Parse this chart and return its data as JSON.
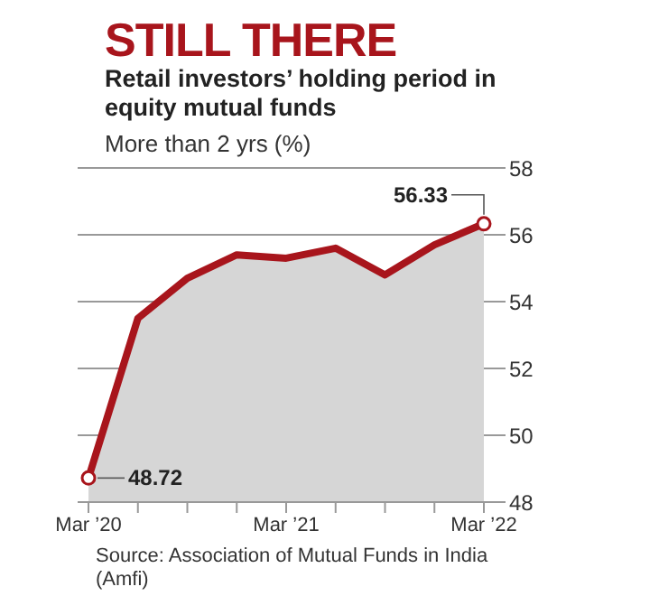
{
  "chart_data": {
    "type": "area",
    "title": "STILL THERE",
    "subtitle": "Retail investors’ holding period in equity mutual funds",
    "ylabel": "More than 2 yrs (%)",
    "categories": [
      "Mar ’20",
      null,
      null,
      null,
      "Mar ’21",
      null,
      null,
      null,
      "Mar ’22"
    ],
    "series": [
      {
        "color": "#a8151c",
        "values": [
          48.72,
          53.5,
          54.7,
          55.4,
          55.3,
          55.6,
          54.8,
          55.7,
          56.33
        ],
        "value_labels": [
          "48.72",
          null,
          null,
          null,
          null,
          null,
          null,
          null,
          "56.33"
        ]
      }
    ],
    "ylim": [
      48,
      58
    ],
    "yticks": [
      48,
      50,
      52,
      54,
      56,
      58
    ],
    "grid": "y",
    "legend": false,
    "annotations": [
      "Source: Association of Mutual Funds in India (Amfi)"
    ]
  }
}
